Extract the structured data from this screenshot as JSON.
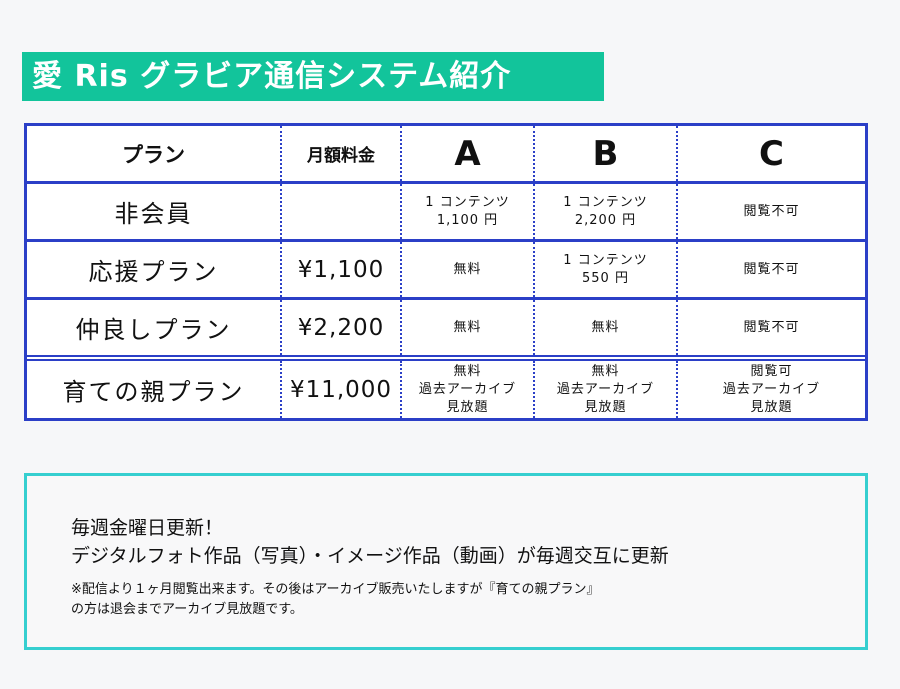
{
  "title": "愛 Ris グラビア通信システム紹介",
  "table": {
    "headers": {
      "plan": "プラン",
      "fee": "月額料金",
      "a": "A",
      "b": "B",
      "c": "C"
    },
    "rows": [
      {
        "plan": "非会員",
        "fee": "",
        "a": [
          "1 コンテンツ",
          "1,100 円"
        ],
        "b": [
          "1 コンテンツ",
          "2,200 円"
        ],
        "c": [
          "閲覧不可"
        ]
      },
      {
        "plan": "応援プラン",
        "fee": "¥1,100",
        "a": [
          "無料"
        ],
        "b": [
          "1 コンテンツ",
          "550 円"
        ],
        "c": [
          "閲覧不可"
        ]
      },
      {
        "plan": "仲良しプラン",
        "fee": "¥2,200",
        "a": [
          "無料"
        ],
        "b": [
          "無料"
        ],
        "c": [
          "閲覧不可"
        ]
      },
      {
        "plan": "育ての親プラン",
        "fee": "¥11,000",
        "a": [
          "無料",
          "過去アーカイブ",
          "見放題"
        ],
        "b": [
          "無料",
          "過去アーカイブ",
          "見放題"
        ],
        "c": [
          "閲覧可",
          "過去アーカイブ",
          "見放題"
        ]
      }
    ]
  },
  "info": {
    "line1": "毎週金曜日更新！",
    "line2": "デジタルフォト作品（写真）・イメージ作品（動画）が毎週交互に更新",
    "note1": "※配信より１ヶ月閲覧出来ます。その後はアーカイブ販売いたしますが『育ての親プラン』",
    "note2": "の方は退会までアーカイブ見放題です。"
  },
  "colors": {
    "title_bg": "#12c49b",
    "table_border": "#2b3fc7",
    "info_border": "#36cfd0"
  }
}
